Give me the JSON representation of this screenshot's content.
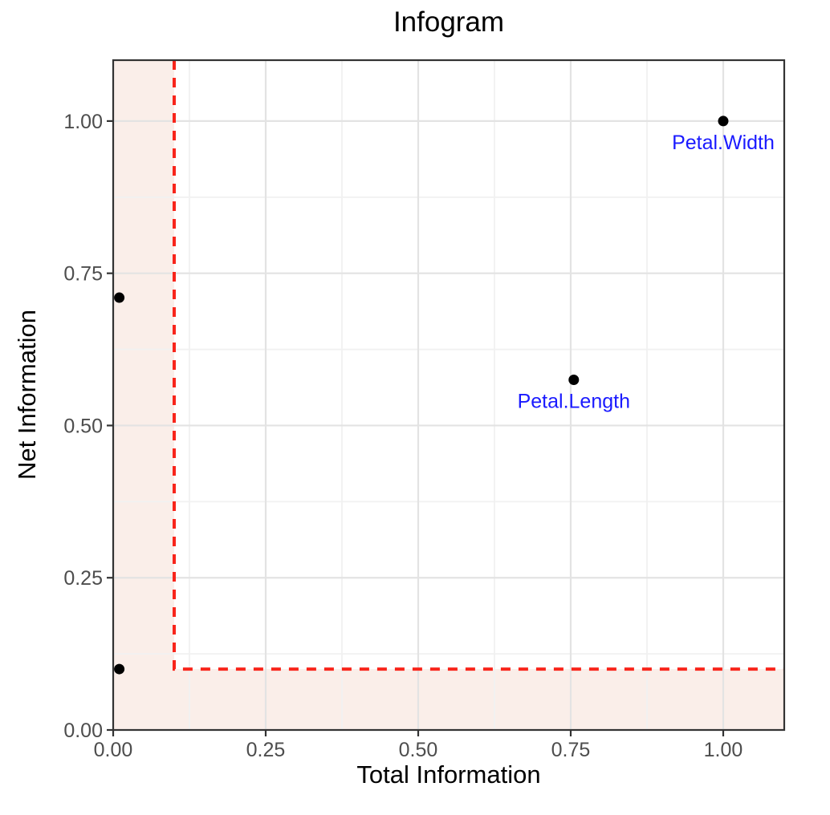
{
  "chart_data": {
    "type": "scatter",
    "title": "Infogram",
    "xlabel": "Total Information",
    "ylabel": "Net Information",
    "xlim": [
      0,
      1.1
    ],
    "ylim": [
      0,
      1.1
    ],
    "x_ticks": [
      0,
      0.25,
      0.5,
      0.75,
      1.0
    ],
    "y_ticks": [
      0,
      0.25,
      0.5,
      0.75,
      1.0
    ],
    "x_tick_labels": [
      "0.00",
      "0.25",
      "0.50",
      "0.75",
      "1.00"
    ],
    "y_tick_labels": [
      "0.00",
      "0.25",
      "0.50",
      "0.75",
      "1.00"
    ],
    "minor_ticks": [
      0.125,
      0.375,
      0.625,
      0.875
    ],
    "grid": true,
    "legend": "none",
    "points": [
      {
        "x": 1.0,
        "y": 1.0,
        "label": "Petal.Width"
      },
      {
        "x": 0.755,
        "y": 0.575,
        "label": "Petal.Length"
      },
      {
        "x": 0.01,
        "y": 0.71,
        "label": ""
      },
      {
        "x": 0.01,
        "y": 0.1,
        "label": ""
      }
    ],
    "threshold": {
      "x": 0.1,
      "y": 0.1,
      "line_style": "dashed"
    },
    "shaded_regions": [
      {
        "x0": 0,
        "x1": 0.1,
        "y0": 0,
        "y1": 1.1
      },
      {
        "x0": 0,
        "x1": 1.1,
        "y0": 0,
        "y1": 0.1
      }
    ],
    "colors": {
      "point": "#000000",
      "point_label": "#1a1aff",
      "threshold_line": "#f8251b",
      "shade_fill": "#faeee9",
      "grid_major": "#e3e3e3",
      "grid_minor": "#f1f1f1",
      "panel_border": "#333333",
      "tick_mark": "#333333",
      "tick_label": "#4d4d4d",
      "axis_title": "#000000",
      "title": "#000000"
    }
  }
}
